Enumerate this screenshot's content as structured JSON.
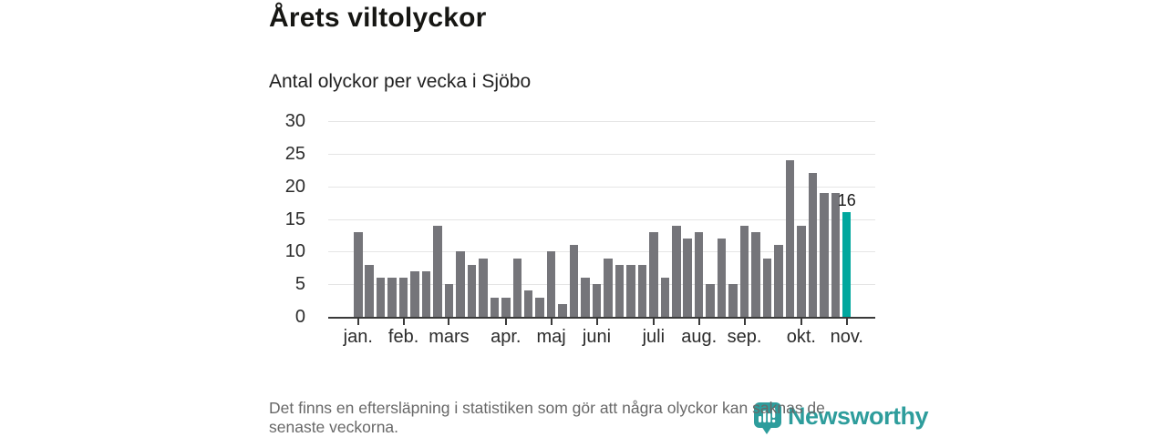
{
  "header": {
    "title": "Årets viltolyckor",
    "subtitle": "Antal olyckor per vecka i Sjöbo"
  },
  "chart_data": {
    "type": "bar",
    "title": "Årets viltolyckor",
    "subtitle": "Antal olyckor per vecka i Sjöbo",
    "xlabel": "",
    "ylabel": "Antal olyckor per vecka",
    "values": [
      13,
      8,
      6,
      6,
      6,
      7,
      7,
      14,
      5,
      10,
      8,
      9,
      3,
      3,
      9,
      4,
      3,
      10,
      2,
      11,
      6,
      5,
      9,
      8,
      8,
      8,
      13,
      6,
      14,
      12,
      13,
      5,
      12,
      5,
      14,
      13,
      9,
      11,
      24,
      14,
      22,
      19,
      19,
      16
    ],
    "y_ticks": [
      0,
      5,
      10,
      15,
      20,
      25,
      30
    ],
    "ylim": [
      0,
      30
    ],
    "grid": true,
    "legend_position": "none",
    "month_ticks": [
      {
        "label": "jan.",
        "bar_index": 0
      },
      {
        "label": "feb.",
        "bar_index": 4
      },
      {
        "label": "mars",
        "bar_index": 8
      },
      {
        "label": "apr.",
        "bar_index": 13
      },
      {
        "label": "maj",
        "bar_index": 17
      },
      {
        "label": "juni",
        "bar_index": 21
      },
      {
        "label": "juli",
        "bar_index": 26
      },
      {
        "label": "aug.",
        "bar_index": 30
      },
      {
        "label": "sep.",
        "bar_index": 34
      },
      {
        "label": "okt.",
        "bar_index": 39
      },
      {
        "label": "nov.",
        "bar_index": 43
      }
    ],
    "highlight": {
      "bar_index": 43,
      "value_label": "16"
    },
    "colors": {
      "bar": "#75757a",
      "highlight_bar": "#00a79e",
      "gridline": "#e5e5e5",
      "axis": "#3a3a3a"
    }
  },
  "footer": {
    "line1": "Det finns en eftersläpning i statistiken som gör att några olyckor kan saknas de",
    "line2": "senaste veckorna."
  },
  "logo": {
    "wordmark": "Newsworthy",
    "color": "#2e9d9c"
  }
}
